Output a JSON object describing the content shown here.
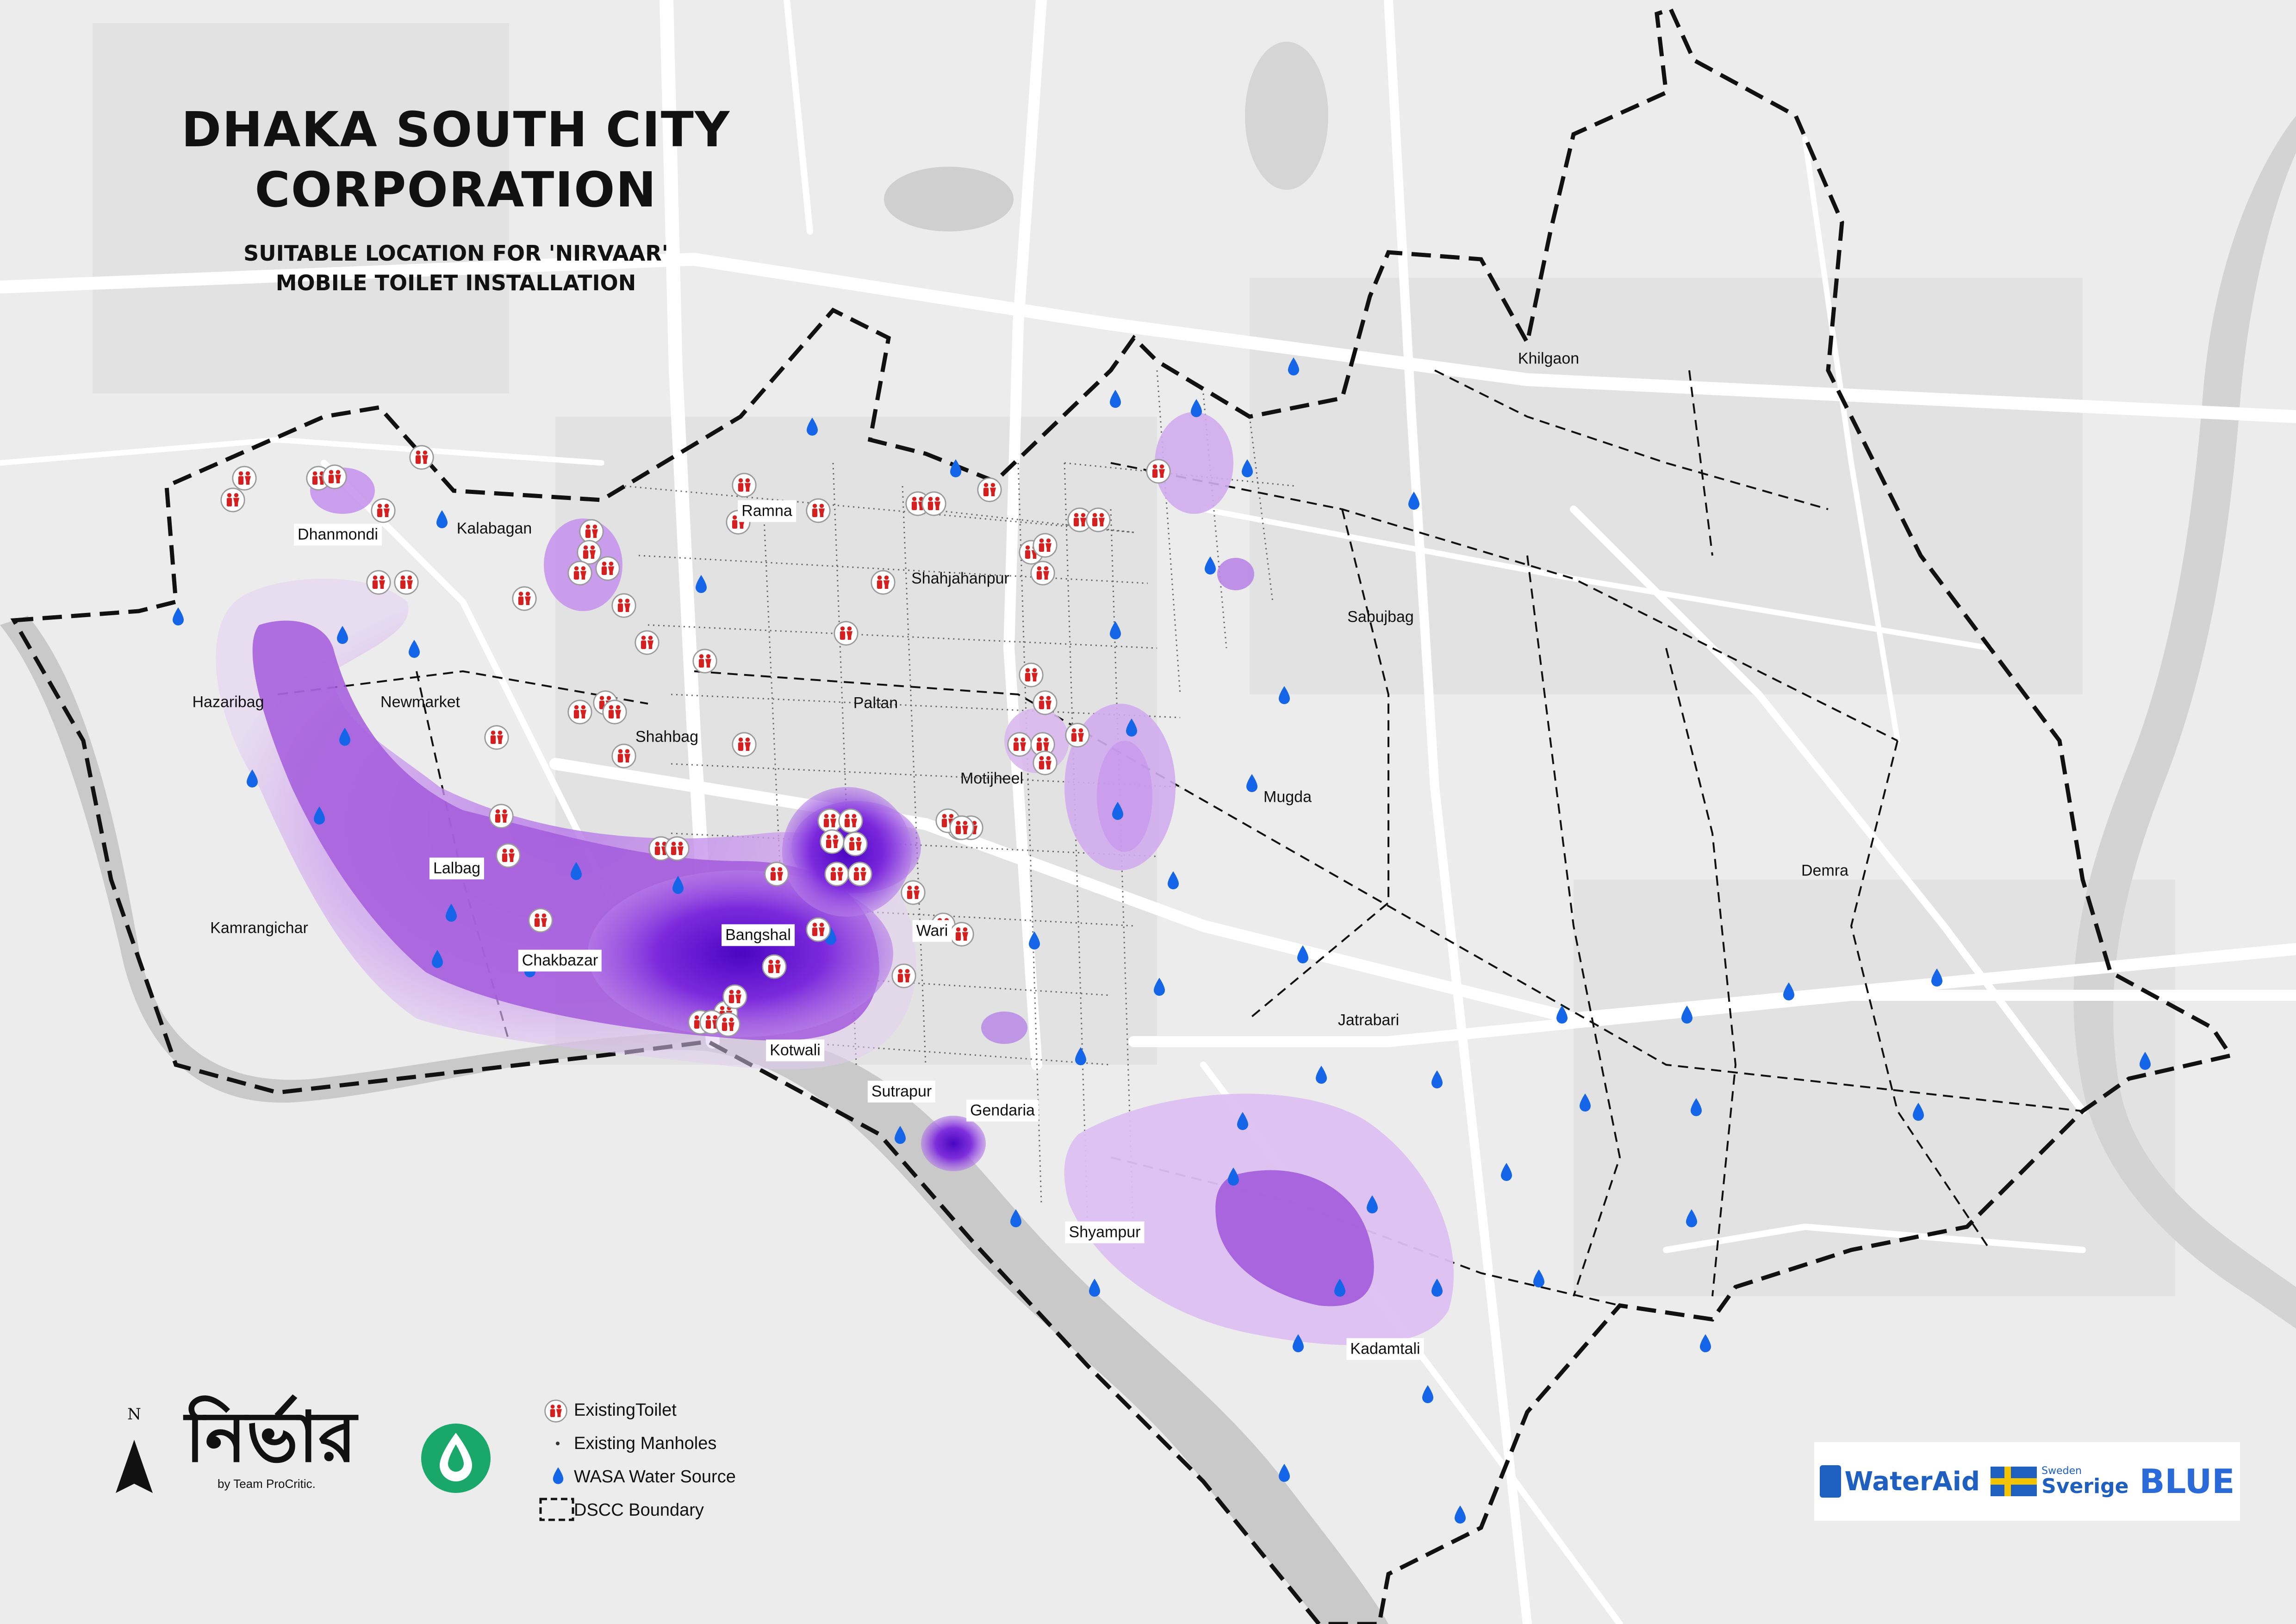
{
  "title": {
    "line1": "DHAKA SOUTH CITY",
    "line2": "CORPORATION",
    "subtitle_line1": "SUITABLE LOCATION FOR 'NIRVAAR'",
    "subtitle_line2": "MOBILE TOILET INSTALLATION"
  },
  "areas": [
    {
      "name": "Khilgaon",
      "boxed": false
    },
    {
      "name": "Dhanmondi",
      "boxed": true
    },
    {
      "name": "Kalabagan",
      "boxed": false
    },
    {
      "name": "Ramna",
      "boxed": true
    },
    {
      "name": "Shahjahanpur",
      "boxed": false
    },
    {
      "name": "Sabujbag",
      "boxed": false
    },
    {
      "name": "Hazaribag",
      "boxed": false
    },
    {
      "name": "Newmarket",
      "boxed": false
    },
    {
      "name": "Paltan",
      "boxed": false
    },
    {
      "name": "Shahbag",
      "boxed": false
    },
    {
      "name": "Motijheel",
      "boxed": false
    },
    {
      "name": "Mugda",
      "boxed": false
    },
    {
      "name": "Lalbag",
      "boxed": true
    },
    {
      "name": "Demra",
      "boxed": false
    },
    {
      "name": "Kamrangichar",
      "boxed": false
    },
    {
      "name": "Bangshal",
      "boxed": true
    },
    {
      "name": "Wari",
      "boxed": true
    },
    {
      "name": "Chakbazar",
      "boxed": true
    },
    {
      "name": "Jatrabari",
      "boxed": false
    },
    {
      "name": "Kotwali",
      "boxed": true
    },
    {
      "name": "Sutrapur",
      "boxed": true
    },
    {
      "name": "Gendaria",
      "boxed": true
    },
    {
      "name": "Shyampur",
      "boxed": true
    },
    {
      "name": "Kadamtali",
      "boxed": true
    }
  ],
  "legend": {
    "items": [
      {
        "label": "ExistingToilet",
        "symbol": "toilet-icon"
      },
      {
        "label": "Existing Manholes",
        "symbol": "manhole-dot"
      },
      {
        "label": "WASA Water Source",
        "symbol": "water-drop-icon"
      },
      {
        "label": "DSCC Boundary",
        "symbol": "dashed-box"
      }
    ]
  },
  "branding": {
    "name": "নির্ভার",
    "by": "by Team ProCritic.",
    "north": "N"
  },
  "partners": [
    {
      "name": "WaterAid"
    },
    {
      "name": "Sweden"
    },
    {
      "name": "Sverige"
    },
    {
      "name": "BLUE"
    }
  ],
  "colors": {
    "background": "#ececec",
    "road": "#ffffff",
    "river": "#c9c9c9",
    "heat_light": "#d9b8ee",
    "heat_mid": "#a555e0",
    "heat_dark": "#5b0bd1",
    "water_drop": "#1565e8",
    "toilet_icon": "#d62020",
    "boundary": "#111111"
  }
}
